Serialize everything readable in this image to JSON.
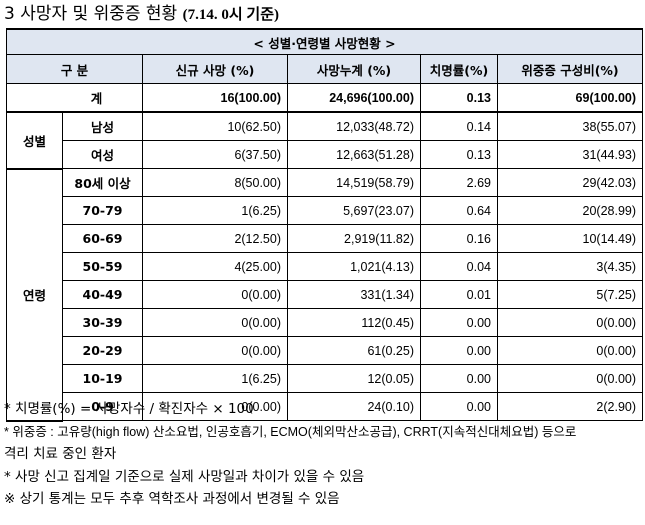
{
  "title": {
    "main": "3  사망자 및 위중증 현황",
    "date": "(7.14. 0시 기준)"
  },
  "table": {
    "caption": "< 성별·연령별 사망현황 >",
    "headers": {
      "group": "구 분",
      "new_deaths": "신규 사망      (%)",
      "cum_deaths": "사망누계      (%)",
      "fatality": "치명률(%)",
      "severe": "위중증   구성비(%)"
    },
    "total": {
      "label": "계",
      "new_deaths": "16(100.00)",
      "cum_deaths": "24,696(100.00)",
      "fatality": "0.13",
      "severe": "69(100.00)"
    },
    "sex_group": "성별",
    "sex_rows": [
      {
        "label": "남성",
        "new_deaths": "10(62.50)",
        "cum_deaths": "12,033(48.72)",
        "fatality": "0.14",
        "severe": "38(55.07)"
      },
      {
        "label": "여성",
        "new_deaths": "6(37.50)",
        "cum_deaths": "12,663(51.28)",
        "fatality": "0.13",
        "severe": "31(44.93)"
      }
    ],
    "age_group": "연령",
    "age_rows": [
      {
        "label": "80세 이상",
        "new_deaths": "8(50.00)",
        "cum_deaths": "14,519(58.79)",
        "fatality": "2.69",
        "severe": "29(42.03)"
      },
      {
        "label": "70-79",
        "new_deaths": "1(6.25)",
        "cum_deaths": "5,697(23.07)",
        "fatality": "0.64",
        "severe": "20(28.99)"
      },
      {
        "label": "60-69",
        "new_deaths": "2(12.50)",
        "cum_deaths": "2,919(11.82)",
        "fatality": "0.16",
        "severe": "10(14.49)"
      },
      {
        "label": "50-59",
        "new_deaths": "4(25.00)",
        "cum_deaths": "1,021(4.13)",
        "fatality": "0.04",
        "severe": "3(4.35)"
      },
      {
        "label": "40-49",
        "new_deaths": "0(0.00)",
        "cum_deaths": "331(1.34)",
        "fatality": "0.01",
        "severe": "5(7.25)"
      },
      {
        "label": "30-39",
        "new_deaths": "0(0.00)",
        "cum_deaths": "112(0.45)",
        "fatality": "0.00",
        "severe": "0(0.00)"
      },
      {
        "label": "20-29",
        "new_deaths": "0(0.00)",
        "cum_deaths": "61(0.25)",
        "fatality": "0.00",
        "severe": "0(0.00)"
      },
      {
        "label": "10-19",
        "new_deaths": "1(6.25)",
        "cum_deaths": "12(0.05)",
        "fatality": "0.00",
        "severe": "0(0.00)"
      },
      {
        "label": "0-9",
        "new_deaths": "0(0.00)",
        "cum_deaths": "24(0.10)",
        "fatality": "0.00",
        "severe": "2(2.90)"
      }
    ]
  },
  "notes": [
    "* 치명률(%) = 사망자수 / 확진자수 × 100",
    "* 위중증 : 고유량(high flow) 산소요법, 인공호흡기, ECMO(체외막산소공급), CRRT(지속적신대체요법) 등으로",
    "격리 치료 중인 환자",
    "* 사망 신고 집계일 기준으로 실제 사망일과 차이가 있을 수 있음",
    "※ 상기 통계는 모두 추후 역학조사 과정에서 변경될 수 있음"
  ]
}
